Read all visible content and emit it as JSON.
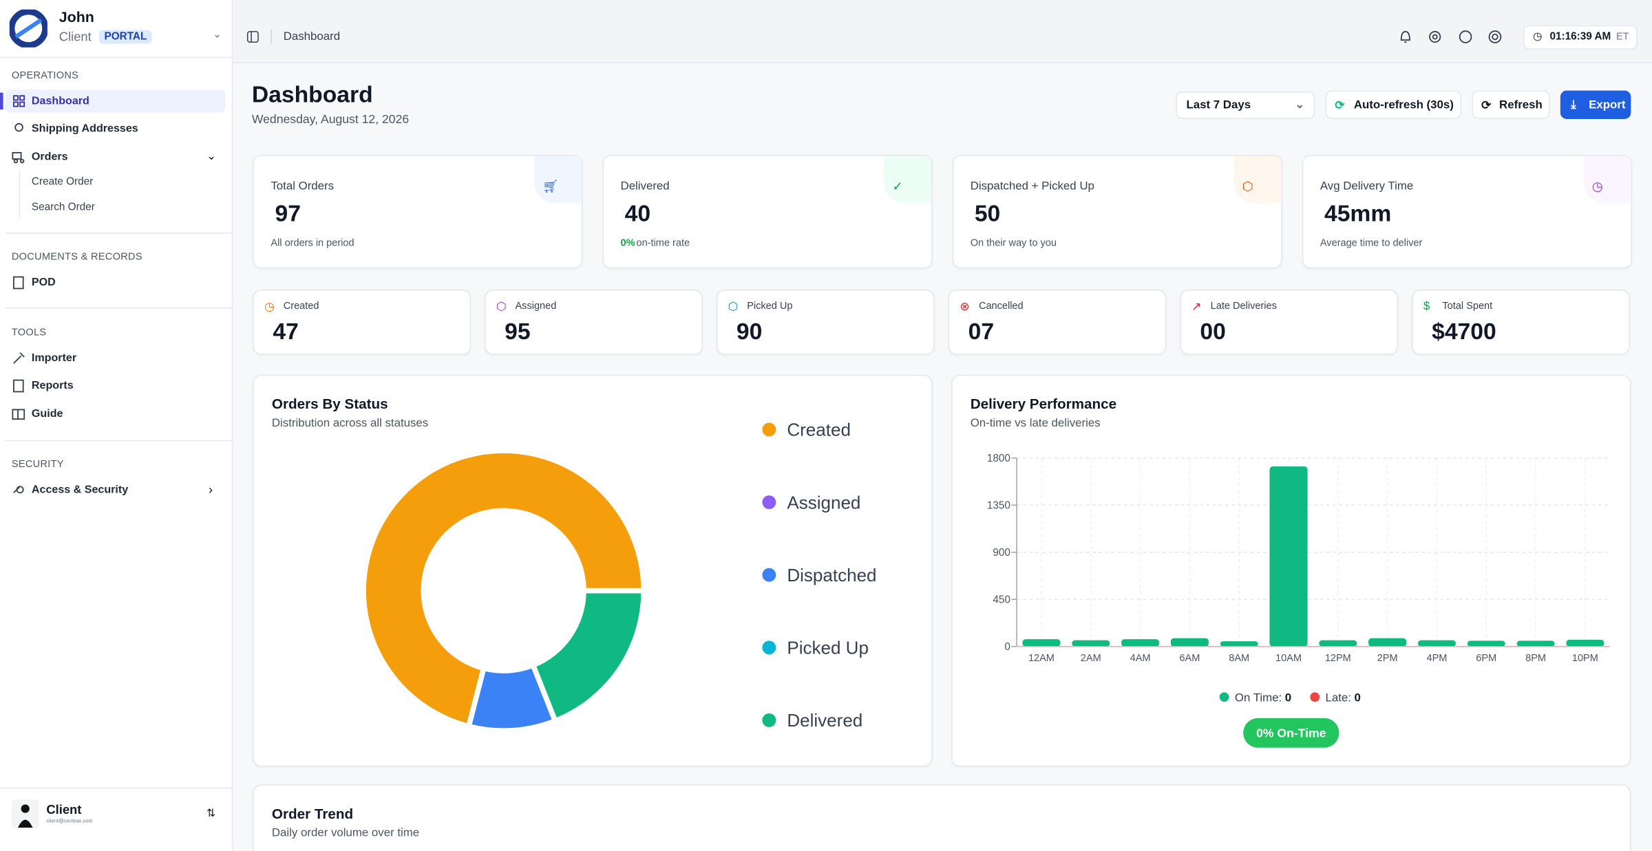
{
  "sidebar": {
    "brand": {
      "name": "John",
      "role": "Client",
      "badge": "PORTAL"
    },
    "sections": [
      {
        "title": "OPERATIONS",
        "items": [
          "Dashboard",
          "Shipping Addresses",
          "Orders"
        ],
        "subitems": [
          "Create Order",
          "Search Order"
        ]
      },
      {
        "title": "DOCUMENTS & RECORDS",
        "items": [
          "POD"
        ]
      },
      {
        "title": "TOOLS",
        "items": [
          "Importer",
          "Reports",
          "Guide"
        ]
      },
      {
        "title": "SECURITY",
        "items": [
          "Access & Security"
        ]
      }
    ],
    "user": {
      "name": "Client",
      "email": "client@centrax.com"
    }
  },
  "header": {
    "breadcrumb": "Dashboard",
    "time": "01:16:39 AM",
    "timezone": "ET"
  },
  "page": {
    "title": "Dashboard",
    "date": "Wednesday, August 12, 2026",
    "controls": {
      "range": "Last 7 Days",
      "auto_refresh": "Auto-refresh (30s)",
      "refresh": "Refresh",
      "export": "Export"
    }
  },
  "stat_cards": [
    {
      "label": "Total Orders",
      "value": "97",
      "note": "All orders in period"
    },
    {
      "label": "Delivered",
      "value": "40",
      "note_highlight": "0%",
      "note": "on-time rate"
    },
    {
      "label": "Dispatched + Picked Up",
      "value": "50",
      "note": "On their way to you"
    },
    {
      "label": "Avg Delivery Time",
      "value": "45mm",
      "note": "Average time to deliver"
    }
  ],
  "mini_cards": [
    {
      "label": "Created",
      "value": "47"
    },
    {
      "label": "Assigned",
      "value": "95"
    },
    {
      "label": "Picked Up",
      "value": "90"
    },
    {
      "label": "Cancelled",
      "value": "07"
    },
    {
      "label": "Late Deliveries",
      "value": "00"
    },
    {
      "label": "Total Spent",
      "value": "$4700"
    }
  ],
  "chart_data": [
    {
      "type": "pie",
      "title": "Orders By Status",
      "subtitle": "Distribution across all statuses",
      "categories": [
        "Created",
        "Assigned",
        "Dispatched",
        "Picked Up",
        "Delivered"
      ],
      "values": [
        71,
        0,
        10,
        0,
        19
      ],
      "colors": [
        "#f59e0b",
        "#8b5cf6",
        "#3b82f6",
        "#06b6d4",
        "#10b981"
      ]
    },
    {
      "type": "bar",
      "title": "Delivery Performance",
      "subtitle": "On-time vs late deliveries",
      "categories": [
        "12AM",
        "2AM",
        "4AM",
        "6AM",
        "8AM",
        "10AM",
        "12PM",
        "2PM",
        "4PM",
        "6PM",
        "8PM",
        "10PM"
      ],
      "values": [
        70,
        60,
        70,
        80,
        50,
        1720,
        60,
        80,
        60,
        55,
        55,
        65
      ],
      "color": "#10b981",
      "ylim": [
        0,
        1800
      ],
      "yticks": [
        0,
        450,
        900,
        1350,
        1800
      ],
      "grid": true,
      "legend": [
        {
          "label": "On Time:",
          "value": 0,
          "color": "#10b981"
        },
        {
          "label": "Late:",
          "value": 0,
          "color": "#ef4444"
        }
      ],
      "badge": "0% On-Time"
    }
  ],
  "trend": {
    "title": "Order Trend",
    "subtitle": "Daily order volume over time"
  }
}
